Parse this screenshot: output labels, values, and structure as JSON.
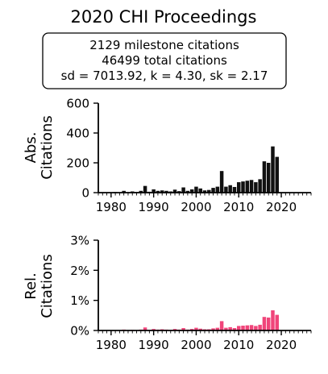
{
  "title": "2020 CHI Proceedings",
  "stats": {
    "line1": "2129 milestone citations",
    "line2": "46499 total citations",
    "line3": "sd = 7013.92, k = 4.30, sk = 2.17"
  },
  "chart_data": [
    {
      "type": "bar",
      "ylabel": [
        "Abs.",
        "Citations"
      ],
      "xlim": [
        1977,
        2027
      ],
      "ylim": [
        0,
        600
      ],
      "xticks": [
        1980,
        1990,
        2000,
        2010,
        2020
      ],
      "yticks": [
        {
          "v": 0,
          "label": "0"
        },
        {
          "v": 200,
          "label": "200"
        },
        {
          "v": 400,
          "label": "400"
        },
        {
          "v": 600,
          "label": "600"
        }
      ],
      "color": "#111111",
      "x": [
        1981,
        1982,
        1983,
        1984,
        1985,
        1986,
        1987,
        1988,
        1989,
        1990,
        1991,
        1992,
        1993,
        1994,
        1995,
        1996,
        1997,
        1998,
        1999,
        2000,
        2001,
        2002,
        2003,
        2004,
        2005,
        2006,
        2007,
        2008,
        2009,
        2010,
        2011,
        2012,
        2013,
        2014,
        2015,
        2016,
        2017,
        2018,
        2019
      ],
      "values": [
        4,
        2,
        12,
        3,
        8,
        4,
        12,
        45,
        6,
        22,
        12,
        15,
        12,
        8,
        20,
        10,
        35,
        12,
        22,
        40,
        28,
        15,
        18,
        32,
        40,
        145,
        40,
        50,
        38,
        70,
        75,
        80,
        85,
        70,
        90,
        210,
        200,
        310,
        240
      ]
    },
    {
      "type": "bar",
      "ylabel": [
        "Rel.",
        "Citations"
      ],
      "xlim": [
        1977,
        2027
      ],
      "ylim": [
        0,
        3
      ],
      "xticks": [
        1980,
        1990,
        2000,
        2010,
        2020
      ],
      "yticks": [
        {
          "v": 0,
          "label": "0%"
        },
        {
          "v": 1,
          "label": "1%"
        },
        {
          "v": 2,
          "label": "2%"
        },
        {
          "v": 3,
          "label": "3%"
        }
      ],
      "color": "#f0457a",
      "x": [
        1981,
        1982,
        1983,
        1984,
        1985,
        1986,
        1987,
        1988,
        1989,
        1990,
        1991,
        1992,
        1993,
        1994,
        1995,
        1996,
        1997,
        1998,
        1999,
        2000,
        2001,
        2002,
        2003,
        2004,
        2005,
        2006,
        2007,
        2008,
        2009,
        2010,
        2011,
        2012,
        2013,
        2014,
        2015,
        2016,
        2017,
        2018,
        2019
      ],
      "values": [
        0.01,
        0.01,
        0.03,
        0.01,
        0.02,
        0.01,
        0.03,
        0.1,
        0.02,
        0.05,
        0.03,
        0.04,
        0.03,
        0.02,
        0.05,
        0.03,
        0.08,
        0.03,
        0.05,
        0.09,
        0.06,
        0.04,
        0.04,
        0.07,
        0.09,
        0.31,
        0.09,
        0.11,
        0.08,
        0.15,
        0.16,
        0.17,
        0.18,
        0.15,
        0.19,
        0.45,
        0.43,
        0.67,
        0.52
      ]
    }
  ]
}
